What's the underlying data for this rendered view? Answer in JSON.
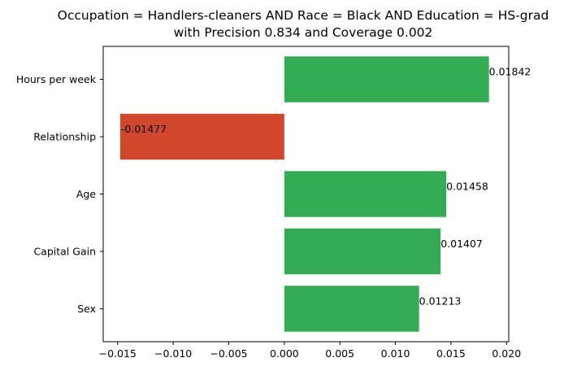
{
  "chart_data": {
    "type": "bar",
    "orientation": "horizontal",
    "title": "Occupation = Handlers-cleaners AND Race = Black AND Education = HS-grad",
    "subtitle": "with Precision 0.834 and Coverage 0.002",
    "xlabel": "",
    "ylabel": "",
    "categories": [
      "Hours per week",
      "Relationship",
      "Age",
      "Capital Gain",
      "Sex"
    ],
    "values": [
      0.01842,
      -0.01477,
      0.01458,
      0.01407,
      0.01213
    ],
    "data_labels": [
      "0.01842",
      "-0.01477",
      "0.01458",
      "0.01407",
      "0.01213"
    ],
    "xlim": [
      -0.0163,
      0.0202
    ],
    "xticks": [
      -0.015,
      -0.01,
      -0.005,
      0.0,
      0.005,
      0.01,
      0.015,
      0.02
    ],
    "xtick_labels": [
      "−0.015",
      "−0.010",
      "−0.005",
      "0.000",
      "0.005",
      "0.010",
      "0.015",
      "0.020"
    ],
    "grid": false,
    "colors": {
      "positive": "#32ab53",
      "negative": "#d0472b"
    }
  }
}
